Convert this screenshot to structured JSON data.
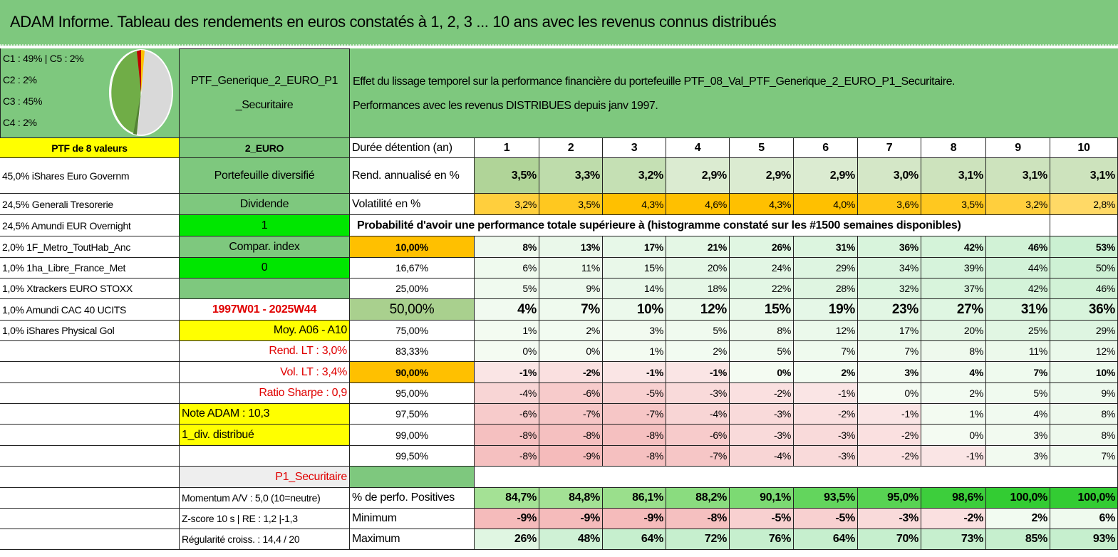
{
  "header": {
    "title": "ADAM Informe. Tableau des rendements en euros constatés à 1, 2, 3 ... 10 ans avec les revenus connus distribués"
  },
  "legend": [
    "C1 : 49% | C5 : 2%",
    "C2 : 2%",
    "C3 : 45%",
    "C4 : 2%"
  ],
  "portfolio": {
    "name_lines": [
      "PTF_Generique_2_EURO_P1",
      "_Securitaire"
    ]
  },
  "description": [
    "Effet du lissage temporel sur la performance financière du portefeuille PTF_08_Val_PTF_Generique_2_EURO_P1_Securitaire.",
    "Performances avec les revenus DISTRIBUES depuis janv 1997."
  ],
  "table": {
    "rows": [
      {
        "a": "PTF de 8 valeurs",
        "b": "2_EURO",
        "c": "Durée détention (an)",
        "values": [
          1,
          2,
          3,
          4,
          5,
          6,
          7,
          8,
          9,
          10
        ]
      },
      {
        "a": "45,0% iShares Euro Governm",
        "b": "Portefeuille diversifié",
        "c": "Rend. annualisé en %",
        "values": [
          "3,5%",
          "3,3%",
          "3,2%",
          "2,9%",
          "2,9%",
          "2,9%",
          "3,0%",
          "3,1%",
          "3,1%",
          "3,1%"
        ]
      },
      {
        "a": "24,5% Generali Tresorerie",
        "b": "Dividende",
        "c": "Volatilité en %",
        "values": [
          "3,2%",
          "3,5%",
          "4,3%",
          "4,6%",
          "4,3%",
          "4,0%",
          "3,6%",
          "3,5%",
          "3,2%",
          "2,8%"
        ]
      },
      {
        "a": "24,5% Amundi EUR Overnight",
        "b": "1",
        "span": "Probabilité d'avoir une performance totale supérieure à (histogramme constaté sur les #1500 semaines disponibles)"
      },
      {
        "a": "2,0% 1F_Metro_ToutHab_Anc",
        "b": "Compar. index",
        "c": "10,00%",
        "values": [
          "8%",
          "13%",
          "17%",
          "21%",
          "26%",
          "31%",
          "36%",
          "42%",
          "46%",
          "53%"
        ]
      },
      {
        "a": "1,0% 1ha_Libre_France_Met",
        "b": "0",
        "c": "16,67%",
        "values": [
          "6%",
          "11%",
          "15%",
          "20%",
          "24%",
          "29%",
          "34%",
          "39%",
          "44%",
          "50%"
        ]
      },
      {
        "a": "1,0% Xtrackers EURO STOXX",
        "c": "25,00%",
        "values": [
          "5%",
          "9%",
          "14%",
          "18%",
          "22%",
          "28%",
          "32%",
          "37%",
          "42%",
          "46%"
        ]
      },
      {
        "a": "1,0% Amundi CAC 40 UCITS",
        "b": "1997W01 - 2025W44",
        "c": "50,00%",
        "values": [
          "4%",
          "7%",
          "10%",
          "12%",
          "15%",
          "19%",
          "23%",
          "27%",
          "31%",
          "36%"
        ]
      },
      {
        "a": "1,0% iShares Physical Gol",
        "b": "Moy. A06 - A10",
        "c": "75,00%",
        "values": [
          "1%",
          "2%",
          "3%",
          "5%",
          "8%",
          "12%",
          "17%",
          "20%",
          "25%",
          "29%"
        ]
      },
      {
        "b": "Rend. LT : 3,0%",
        "c": "83,33%",
        "values": [
          "0%",
          "0%",
          "1%",
          "2%",
          "5%",
          "7%",
          "7%",
          "8%",
          "11%",
          "12%"
        ]
      },
      {
        "b": "Vol. LT : 3,4%",
        "c": "90,00%",
        "values": [
          "-1%",
          "-2%",
          "-1%",
          "-1%",
          "0%",
          "2%",
          "3%",
          "4%",
          "7%",
          "10%"
        ]
      },
      {
        "b": "Ratio Sharpe : 0,9",
        "c": "95,00%",
        "values": [
          "-4%",
          "-6%",
          "-5%",
          "-3%",
          "-2%",
          "-1%",
          "0%",
          "2%",
          "5%",
          "9%"
        ]
      },
      {
        "b": "Note ADAM : 10,3",
        "c": "97,50%",
        "values": [
          "-6%",
          "-7%",
          "-7%",
          "-4%",
          "-3%",
          "-2%",
          "-1%",
          "1%",
          "4%",
          "8%"
        ]
      },
      {
        "b": "1_div. distribué",
        "c": "99,00%",
        "values": [
          "-8%",
          "-8%",
          "-8%",
          "-6%",
          "-3%",
          "-3%",
          "-2%",
          "0%",
          "3%",
          "8%"
        ]
      },
      {
        "c": "99,50%",
        "values": [
          "-8%",
          "-9%",
          "-8%",
          "-7%",
          "-4%",
          "-3%",
          "-2%",
          "-1%",
          "3%",
          "7%"
        ]
      },
      {
        "b": "P1_Securitaire"
      },
      {
        "b": "Momentum A/V : 5,0 (10=neutre)",
        "c": "% de perfo. Positives",
        "values": [
          "84,7%",
          "84,8%",
          "86,1%",
          "88,2%",
          "90,1%",
          "93,5%",
          "95,0%",
          "98,6%",
          "100,0%",
          "100,0%"
        ]
      },
      {
        "b": "Z-score 10 s | RE : 1,2 |-1,3",
        "c": "Minimum",
        "values": [
          "-9%",
          "-9%",
          "-9%",
          "-8%",
          "-5%",
          "-5%",
          "-3%",
          "-2%",
          "2%",
          "6%"
        ]
      },
      {
        "b": "Régularité croiss. : 14,4 / 20",
        "c": "Maximum",
        "values": [
          "26%",
          "48%",
          "64%",
          "72%",
          "76%",
          "64%",
          "70%",
          "73%",
          "85%",
          "93%"
        ]
      }
    ]
  }
}
